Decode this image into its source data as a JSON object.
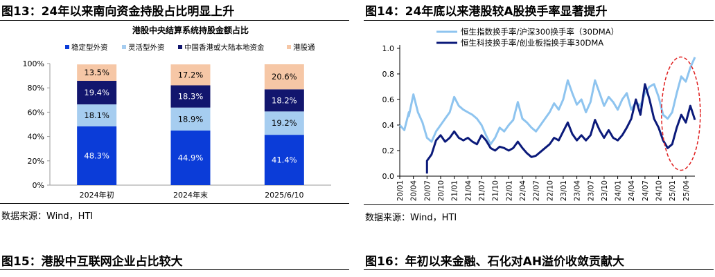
{
  "figures": {
    "fig13": {
      "title": "图13：24年以来南向资金持股占比明显上升",
      "source": "数据来源：Wind，HTI"
    },
    "fig14": {
      "title": "图14：24年底以来港股较A股换手率显著提升",
      "source": "数据来源：Wind，HTI"
    },
    "fig15": {
      "title": "图15：港股中互联网企业占比较大"
    },
    "fig16": {
      "title": "图16：年初以来金融、石化对AH溢价收敛贡献大"
    }
  },
  "chart_data": [
    {
      "type": "bar",
      "stacked": true,
      "title": "港股中央结算系统持股金额占比",
      "categories": [
        "2024年初",
        "2024年末",
        "2025/6/10"
      ],
      "series": [
        {
          "name": "稳定型外资",
          "values": [
            48.3,
            44.9,
            41.4
          ],
          "labels": [
            "48.3%",
            "44.9%",
            "41.4%"
          ],
          "color": "#0b3cd8",
          "label_color": "#ffffff"
        },
        {
          "name": "灵活型外资",
          "values": [
            18.1,
            18.9,
            19.2
          ],
          "labels": [
            "18.1%",
            "18.9%",
            "19.2%"
          ],
          "color": "#a6cdf0",
          "label_color": "#000000"
        },
        {
          "name": "中国香港或大陆本地资金",
          "values": [
            19.4,
            18.3,
            18.2
          ],
          "labels": [
            "19.4%",
            "18.3%",
            "18.2%"
          ],
          "color": "#12166e",
          "label_color": "#ffffff"
        },
        {
          "name": "港股通",
          "values": [
            13.5,
            17.2,
            20.6
          ],
          "labels": [
            "13.5%",
            "17.2%",
            "20.6%"
          ],
          "color": "#f6c7a6",
          "label_color": "#000000"
        }
      ],
      "ylim": [
        0,
        100
      ],
      "yticks": [
        "0%",
        "20%",
        "40%",
        "60%",
        "80%",
        "100%"
      ],
      "legend": "top",
      "grid": false
    },
    {
      "type": "line",
      "title": "",
      "xlabels": [
        "20/01",
        "20/04",
        "20/07",
        "20/10",
        "21/01",
        "21/04",
        "21/07",
        "21/10",
        "22/01",
        "22/04",
        "22/07",
        "22/10",
        "23/01",
        "23/04",
        "23/07",
        "23/10",
        "24/01",
        "24/04",
        "24/07",
        "24/10",
        "25/01",
        "25/04"
      ],
      "ylim": [
        0,
        1.0
      ],
      "yticks": [
        "0.0",
        "0.2",
        "0.4",
        "0.6",
        "0.8",
        "1.0"
      ],
      "legend": "top",
      "grid": false,
      "annotation": "dashed red ellipse highlighting 24/10–25/04",
      "series": [
        {
          "name": "恒生指数换手率/沪深300换手率（30DMA）",
          "color": "#8ec4ef",
          "points": [
            [
              "20/01",
              0.4
            ],
            [
              "20/02",
              0.36
            ],
            [
              "20/03",
              0.5
            ],
            [
              "20/03",
              0.47
            ],
            [
              "20/04",
              0.64
            ],
            [
              "20/05",
              0.5
            ],
            [
              "20/06",
              0.42
            ],
            [
              "20/07",
              0.3
            ],
            [
              "20/08",
              0.27
            ],
            [
              "20/09",
              0.35
            ],
            [
              "20/10",
              0.4
            ],
            [
              "20/11",
              0.45
            ],
            [
              "20/12",
              0.5
            ],
            [
              "21/01",
              0.62
            ],
            [
              "21/02",
              0.55
            ],
            [
              "21/03",
              0.52
            ],
            [
              "21/04",
              0.5
            ],
            [
              "21/05",
              0.48
            ],
            [
              "21/06",
              0.45
            ],
            [
              "21/07",
              0.4
            ],
            [
              "21/08",
              0.32
            ],
            [
              "21/09",
              0.25
            ],
            [
              "21/10",
              0.3
            ],
            [
              "21/11",
              0.38
            ],
            [
              "21/12",
              0.35
            ],
            [
              "22/01",
              0.4
            ],
            [
              "22/02",
              0.44
            ],
            [
              "22/03",
              0.58
            ],
            [
              "22/04",
              0.45
            ],
            [
              "22/05",
              0.42
            ],
            [
              "22/06",
              0.38
            ],
            [
              "22/07",
              0.35
            ],
            [
              "22/08",
              0.4
            ],
            [
              "22/09",
              0.45
            ],
            [
              "22/10",
              0.5
            ],
            [
              "22/11",
              0.57
            ],
            [
              "22/12",
              0.52
            ],
            [
              "23/01",
              0.6
            ],
            [
              "23/02",
              0.75
            ],
            [
              "23/03",
              0.65
            ],
            [
              "23/04",
              0.56
            ],
            [
              "23/05",
              0.6
            ],
            [
              "23/06",
              0.5
            ],
            [
              "23/07",
              0.58
            ],
            [
              "23/08",
              0.75
            ],
            [
              "23/09",
              0.65
            ],
            [
              "23/10",
              0.55
            ],
            [
              "23/11",
              0.62
            ],
            [
              "23/12",
              0.58
            ],
            [
              "24/01",
              0.52
            ],
            [
              "24/02",
              0.6
            ],
            [
              "24/03",
              0.65
            ],
            [
              "24/04",
              0.52
            ],
            [
              "24/05",
              0.58
            ],
            [
              "24/06",
              0.55
            ],
            [
              "24/07",
              0.65
            ],
            [
              "24/08",
              0.7
            ],
            [
              "24/09",
              0.72
            ],
            [
              "24/10",
              0.62
            ],
            [
              "24/11",
              0.48
            ],
            [
              "24/12",
              0.45
            ],
            [
              "25/01",
              0.5
            ],
            [
              "25/02",
              0.65
            ],
            [
              "25/03",
              0.78
            ],
            [
              "25/04",
              0.74
            ],
            [
              "25/05",
              0.85
            ],
            [
              "25/06",
              0.93
            ]
          ]
        },
        {
          "name": "恒生科技换手率/创业板指换手率30DMA",
          "color": "#0b1a7a",
          "points": [
            [
              "20/07",
              0.02
            ],
            [
              "20/07",
              0.12
            ],
            [
              "20/08",
              0.17
            ],
            [
              "20/09",
              0.28
            ],
            [
              "20/10",
              0.32
            ],
            [
              "20/11",
              0.27
            ],
            [
              "20/12",
              0.3
            ],
            [
              "21/01",
              0.35
            ],
            [
              "21/02",
              0.3
            ],
            [
              "21/03",
              0.28
            ],
            [
              "21/04",
              0.3
            ],
            [
              "21/05",
              0.27
            ],
            [
              "21/06",
              0.25
            ],
            [
              "21/07",
              0.32
            ],
            [
              "21/08",
              0.28
            ],
            [
              "21/09",
              0.22
            ],
            [
              "21/10",
              0.2
            ],
            [
              "21/11",
              0.23
            ],
            [
              "21/12",
              0.22
            ],
            [
              "22/01",
              0.2
            ],
            [
              "22/02",
              0.22
            ],
            [
              "22/03",
              0.27
            ],
            [
              "22/04",
              0.22
            ],
            [
              "22/05",
              0.18
            ],
            [
              "22/06",
              0.15
            ],
            [
              "22/07",
              0.16
            ],
            [
              "22/08",
              0.19
            ],
            [
              "22/09",
              0.22
            ],
            [
              "22/10",
              0.25
            ],
            [
              "22/11",
              0.3
            ],
            [
              "22/12",
              0.28
            ],
            [
              "23/01",
              0.35
            ],
            [
              "23/02",
              0.42
            ],
            [
              "23/03",
              0.33
            ],
            [
              "23/04",
              0.28
            ],
            [
              "23/05",
              0.32
            ],
            [
              "23/06",
              0.28
            ],
            [
              "23/07",
              0.32
            ],
            [
              "23/08",
              0.44
            ],
            [
              "23/09",
              0.36
            ],
            [
              "23/10",
              0.3
            ],
            [
              "23/11",
              0.36
            ],
            [
              "23/12",
              0.3
            ],
            [
              "24/01",
              0.28
            ],
            [
              "24/02",
              0.32
            ],
            [
              "24/03",
              0.38
            ],
            [
              "24/04",
              0.45
            ],
            [
              "24/05",
              0.6
            ],
            [
              "24/06",
              0.48
            ],
            [
              "24/07",
              0.72
            ],
            [
              "24/08",
              0.6
            ],
            [
              "24/09",
              0.45
            ],
            [
              "24/10",
              0.38
            ],
            [
              "24/11",
              0.28
            ],
            [
              "24/12",
              0.22
            ],
            [
              "25/01",
              0.25
            ],
            [
              "25/02",
              0.38
            ],
            [
              "25/03",
              0.48
            ],
            [
              "25/04",
              0.42
            ],
            [
              "25/05",
              0.55
            ],
            [
              "25/06",
              0.44
            ]
          ]
        }
      ]
    }
  ]
}
